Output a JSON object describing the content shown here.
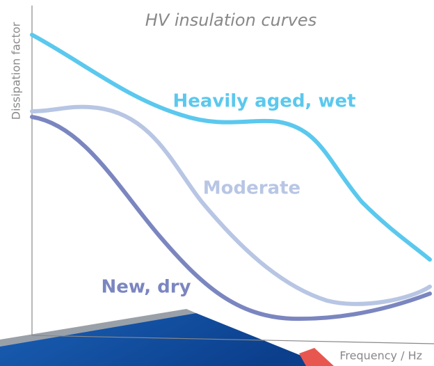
{
  "title": "HV insulation curves",
  "axes": {
    "y_label": "Dissipation factor",
    "x_label": "Frequency / Hz"
  },
  "curves": [
    {
      "label": "Heavily aged, wet"
    },
    {
      "label": "Moderate"
    },
    {
      "label": "New, dry"
    }
  ]
}
